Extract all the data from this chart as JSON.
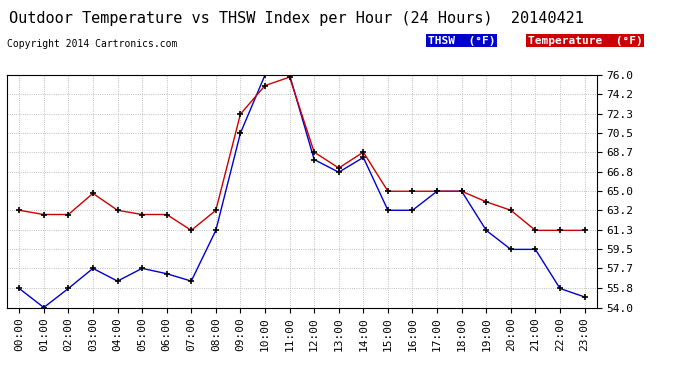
{
  "title": "Outdoor Temperature vs THSW Index per Hour (24 Hours)  20140421",
  "copyright": "Copyright 2014 Cartronics.com",
  "ylim": [
    54.0,
    76.0
  ],
  "yticks": [
    54.0,
    55.8,
    57.7,
    59.5,
    61.3,
    63.2,
    65.0,
    66.8,
    68.7,
    70.5,
    72.3,
    74.2,
    76.0
  ],
  "hours": [
    0,
    1,
    2,
    3,
    4,
    5,
    6,
    7,
    8,
    9,
    10,
    11,
    12,
    13,
    14,
    15,
    16,
    17,
    18,
    19,
    20,
    21,
    22,
    23
  ],
  "temperature": [
    63.2,
    62.8,
    62.8,
    64.8,
    63.2,
    62.8,
    62.8,
    61.3,
    63.2,
    72.3,
    75.0,
    75.8,
    68.7,
    67.2,
    68.7,
    65.0,
    65.0,
    65.0,
    65.0,
    64.0,
    63.2,
    61.3,
    61.3,
    61.3
  ],
  "thsw": [
    55.8,
    54.0,
    55.8,
    57.7,
    56.5,
    57.7,
    57.2,
    56.5,
    61.3,
    70.5,
    76.0,
    76.0,
    68.0,
    66.8,
    68.2,
    63.2,
    63.2,
    65.0,
    65.0,
    61.3,
    59.5,
    59.5,
    55.8,
    55.0
  ],
  "temp_color": "#cc0000",
  "thsw_color": "#0000cc",
  "thsw_label": "THSW  (°F)",
  "temp_label": "Temperature  (°F)",
  "legend_thsw_bg": "#0000cc",
  "legend_temp_bg": "#cc0000",
  "background_color": "#ffffff",
  "plot_bg": "#ffffff",
  "grid_color": "#aaaaaa",
  "title_fontsize": 11,
  "copyright_fontsize": 7,
  "tick_fontsize": 8,
  "legend_fontsize": 8,
  "marker": "+",
  "markersize": 5,
  "markeredgewidth": 1.2,
  "linewidth": 1.0
}
